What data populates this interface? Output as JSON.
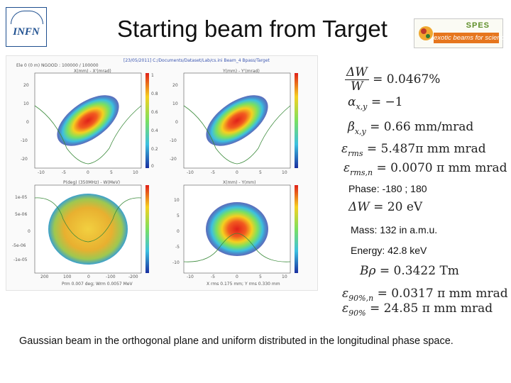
{
  "header": {
    "title": "Starting beam from Target",
    "infn_logo_text": "INFN",
    "spes_logo_text": "SPES",
    "spes_slogan": "exotic beams for science"
  },
  "screenshot": {
    "status_left": "Ele 0 (0 m)   NGOOD : 100000 / 100000",
    "status_top": "[23/05/2011] C:/Documents/Dataset/Lab/cs.ini   Beam_4   Bpass/Target",
    "plot_titles": {
      "top_left": "X(mm) - X'(mrad)",
      "top_right": "Y(mm) - Y'(mrad)",
      "bottom_left": "P(deg) (350MHz) - W(MeV)",
      "bottom_right": "X(mm) - Y(mm)"
    },
    "bottom_labels": {
      "left": "Prm 0.007 deg; Wrm 0.0057 MeV",
      "right": "X rms 0.175 mm; Y rms 0.330 mm"
    },
    "top_x_ticks": [
      "-10",
      "-5",
      "0",
      "5",
      "10"
    ],
    "bl_x_ticks": [
      "200",
      "100",
      "0",
      "-100",
      "-200"
    ],
    "top_y_ticks": [
      "20",
      "10",
      "0",
      "-10",
      "-20"
    ],
    "bl_y_ticks": [
      "1e-05",
      "5e-06",
      "0",
      "-5e-06",
      "-1e-05"
    ],
    "br_y_ticks": [
      "10",
      "5",
      "0",
      "-5",
      "-10"
    ],
    "cbar_ticks": [
      "1",
      "0.8",
      "0.6",
      "0.4",
      "0.2",
      "0"
    ],
    "colors": {
      "hot": "#e0201a",
      "mid": "#f5d020",
      "cool": "#3cc0e0",
      "cold": "#1a2fa0"
    }
  },
  "equations": {
    "dW_W": {
      "num": "ΔW",
      "den": "W",
      "value": "= 0.0467%"
    },
    "alpha": {
      "symbol": "α",
      "sub": "x,y",
      "value": "= −1"
    },
    "beta": {
      "symbol": "β",
      "sub": "x,y",
      "value": "= 0.66 mm/mrad"
    },
    "eps_rms": {
      "symbol": "ε",
      "sub": "rms",
      "value": "= 5.487π mm mrad"
    },
    "eps_rms_n": {
      "symbol": "ε",
      "sub": "rms,n",
      "value": "= 0.0070 π mm mrad"
    },
    "phase": "Phase: -180 ; 180",
    "dW": {
      "symbol": "ΔW",
      "value": "= 20 eV"
    },
    "mass": "Mass: 132 in a.m.u.",
    "energy": "Energy: 42.8 keV",
    "brho": {
      "symbol": "Bρ",
      "value": "= 0.3422 Tm"
    },
    "eps90n": {
      "symbol": "ε",
      "sub": "90%,n",
      "value": "= 0.0317 π mm mrad"
    },
    "eps90": {
      "symbol": "ε",
      "sub": "90%",
      "value": "= 24.85 π mm mrad"
    }
  },
  "caption": "Gaussian beam in the orthogonal plane and uniform distributed in the longitudinal phase space."
}
